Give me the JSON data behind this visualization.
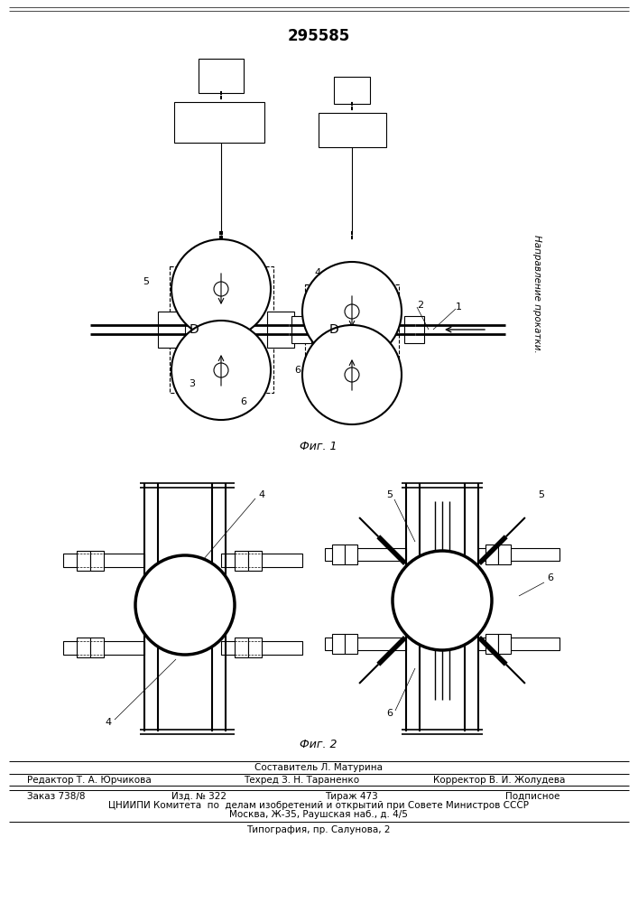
{
  "title_number": "295585",
  "fig1_label": "Фиг. 1",
  "fig2_label": "Фиг. 2",
  "direction_label": "Направление прокатки.",
  "footer_line1": "Составитель Л. Матурина",
  "footer_line2_col1": "Редактор Т. А. Юрчикова",
  "footer_line2_col2": "Техред З. Н. Тараненко",
  "footer_line2_col3": "Корректор В. И. Жолудева",
  "footer_line3_col1": "Заказ 738/8",
  "footer_line3_col2": "Изд. № 322",
  "footer_line3_col3": "Тираж 473",
  "footer_line3_col4": "Подписное",
  "footer_line4": "ЦНИИПИ Комитета  по  делам изобретений и открытий при Совете Министров СССР",
  "footer_line5": "Москва, Ж-35, Раушская наб., д. 4/5",
  "footer_line6": "Типография, пр. Салунова, 2",
  "bg_color": "#ffffff",
  "line_color": "#000000"
}
